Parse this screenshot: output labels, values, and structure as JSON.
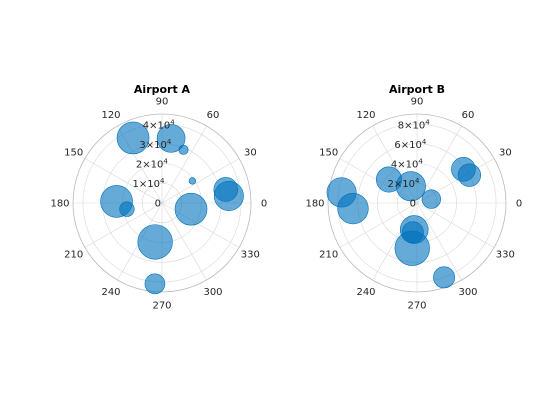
{
  "figure": {
    "background": "#ffffff"
  },
  "chart_data": [
    {
      "type": "scatter",
      "subtype": "polar-bubble",
      "title": "Airport A",
      "theta_ticks": [
        "0",
        "30",
        "60",
        "90",
        "120",
        "150",
        "180",
        "210",
        "240",
        "270",
        "300",
        "330"
      ],
      "r_ticks": [
        {
          "value": 0,
          "label": "0"
        },
        {
          "value": 10000,
          "label": "1",
          "exponent": "4"
        },
        {
          "value": 20000,
          "label": "2",
          "exponent": "4"
        },
        {
          "value": 30000,
          "label": "3",
          "exponent": "4"
        },
        {
          "value": 40000,
          "label": "4",
          "exponent": "4"
        }
      ],
      "rlim": [
        0,
        45000
      ],
      "marker_color": "#0072BD",
      "marker_alpha": 0.6,
      "grid": true,
      "points": [
        {
          "theta": 114,
          "r": 36000,
          "size": 24
        },
        {
          "theta": 82,
          "r": 33000,
          "size": 21
        },
        {
          "theta": 68,
          "r": 29000,
          "size": 7
        },
        {
          "theta": 36,
          "r": 19000,
          "size": 5
        },
        {
          "theta": 6,
          "r": 34000,
          "size": 22
        },
        {
          "theta": 12,
          "r": 33000,
          "size": 18
        },
        {
          "theta": 348,
          "r": 15000,
          "size": 24
        },
        {
          "theta": 178,
          "r": 23000,
          "size": 24
        },
        {
          "theta": 190,
          "r": 18000,
          "size": 11
        },
        {
          "theta": 260,
          "r": 20000,
          "size": 26
        },
        {
          "theta": 265,
          "r": 41000,
          "size": 15
        }
      ]
    },
    {
      "type": "scatter",
      "subtype": "polar-bubble",
      "title": "Airport B",
      "theta_ticks": [
        "0",
        "30",
        "60",
        "90",
        "120",
        "150",
        "180",
        "210",
        "240",
        "270",
        "300",
        "330"
      ],
      "r_ticks": [
        {
          "value": 0,
          "label": "0"
        },
        {
          "value": 20000,
          "label": "2",
          "exponent": "4"
        },
        {
          "value": 40000,
          "label": "4",
          "exponent": "4"
        },
        {
          "value": 60000,
          "label": "6",
          "exponent": "4"
        },
        {
          "value": 80000,
          "label": "8",
          "exponent": "4"
        }
      ],
      "rlim": [
        0,
        90000
      ],
      "marker_color": "#0072BD",
      "marker_alpha": 0.6,
      "grid": true,
      "points": [
        {
          "theta": 36,
          "r": 58000,
          "size": 18
        },
        {
          "theta": 28,
          "r": 60000,
          "size": 17
        },
        {
          "theta": 15,
          "r": 15000,
          "size": 14
        },
        {
          "theta": 110,
          "r": 18000,
          "size": 22
        },
        {
          "theta": 140,
          "r": 37000,
          "size": 19
        },
        {
          "theta": 172,
          "r": 77000,
          "size": 22
        },
        {
          "theta": 185,
          "r": 65000,
          "size": 23
        },
        {
          "theta": 264,
          "r": 27000,
          "size": 21
        },
        {
          "theta": 262,
          "r": 30000,
          "size": 16
        },
        {
          "theta": 264,
          "r": 46000,
          "size": 26
        },
        {
          "theta": 290,
          "r": 80000,
          "size": 16
        }
      ]
    }
  ]
}
